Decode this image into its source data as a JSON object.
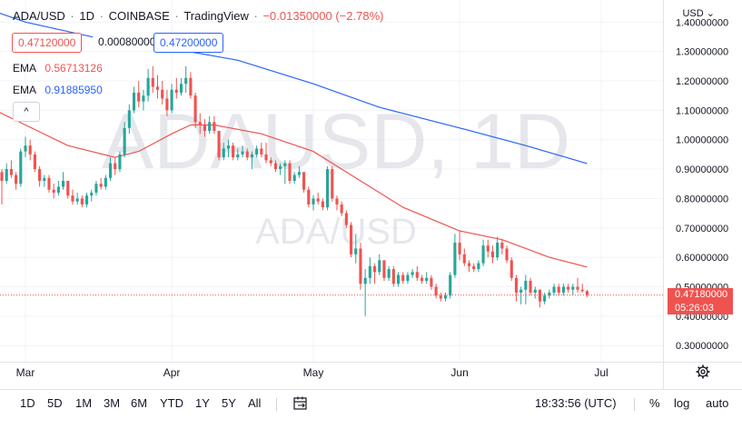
{
  "header": {
    "symbol": "ADA/USD",
    "interval": "1D",
    "exchange": "COINBASE",
    "source": "TradingView",
    "change": "−0.01350000 (−2.78%)",
    "bid": "0.47120000",
    "spread": "0.00080000",
    "ask": "0.47200000"
  },
  "indicators": [
    {
      "label": "EMA",
      "value": "0.56713126",
      "color": "#ef5350"
    },
    {
      "label": "EMA",
      "value": "0.91885950",
      "color": "#2962ff"
    }
  ],
  "collapse_glyph": "^",
  "currency": "USD",
  "currency_glyph": "⌄",
  "watermark": {
    "main": "ADAUSD, 1D",
    "sub": "ADA/USD"
  },
  "price_tag": {
    "price": "0.47180000",
    "countdown": "05:26:03"
  },
  "toolbar": {
    "intervals": [
      "1D",
      "5D",
      "1M",
      "3M",
      "6M",
      "YTD",
      "1Y",
      "5Y",
      "All"
    ],
    "compare_icon": "calendar-range-icon",
    "time": "18:33:56 (UTC)",
    "percent": "%",
    "log": "log",
    "auto": "auto"
  },
  "settings_icon": "gear-icon",
  "chart_data": {
    "type": "candlestick",
    "y_tick_labels": [
      "0.30000000",
      "0.40000000",
      "0.50000000",
      "0.60000000",
      "0.70000000",
      "0.80000000",
      "0.90000000",
      "1.00000000",
      "1.10000000",
      "1.20000000",
      "1.30000000",
      "1.40000000"
    ],
    "y_ticks": [
      0.3,
      0.4,
      0.5,
      0.6,
      0.7,
      0.8,
      0.9,
      1.0,
      1.1,
      1.2,
      1.3,
      1.4
    ],
    "ylim": [
      0.245,
      1.475
    ],
    "x_tick_labels": [
      "Mar",
      "Apr",
      "May",
      "Jun",
      "Jul"
    ],
    "x_ticks": [
      "2022-03-01",
      "2022-04-01",
      "2022-05-01",
      "2022-06-01",
      "2022-07-01"
    ],
    "last_price": 0.4718,
    "candles": [
      {
        "date": "2022-02-20",
        "o": 0.95,
        "h": 0.96,
        "l": 0.86,
        "c": 0.87
      },
      {
        "date": "2022-02-21",
        "o": 0.87,
        "h": 0.93,
        "l": 0.84,
        "c": 0.9
      },
      {
        "date": "2022-02-22",
        "o": 0.9,
        "h": 0.94,
        "l": 0.87,
        "c": 0.92
      },
      {
        "date": "2022-02-23",
        "o": 0.92,
        "h": 0.95,
        "l": 0.88,
        "c": 0.89
      },
      {
        "date": "2022-02-24",
        "o": 0.89,
        "h": 0.9,
        "l": 0.78,
        "c": 0.86
      },
      {
        "date": "2022-02-25",
        "o": 0.86,
        "h": 0.92,
        "l": 0.85,
        "c": 0.9
      },
      {
        "date": "2022-02-26",
        "o": 0.9,
        "h": 0.93,
        "l": 0.87,
        "c": 0.88
      },
      {
        "date": "2022-02-27",
        "o": 0.88,
        "h": 0.89,
        "l": 0.83,
        "c": 0.85
      },
      {
        "date": "2022-02-28",
        "o": 0.85,
        "h": 0.97,
        "l": 0.84,
        "c": 0.96
      },
      {
        "date": "2022-03-01",
        "o": 0.96,
        "h": 1.01,
        "l": 0.94,
        "c": 0.98
      },
      {
        "date": "2022-03-02",
        "o": 0.98,
        "h": 1.0,
        "l": 0.93,
        "c": 0.95
      },
      {
        "date": "2022-03-03",
        "o": 0.95,
        "h": 0.96,
        "l": 0.89,
        "c": 0.9
      },
      {
        "date": "2022-03-04",
        "o": 0.9,
        "h": 0.91,
        "l": 0.84,
        "c": 0.86
      },
      {
        "date": "2022-03-05",
        "o": 0.86,
        "h": 0.88,
        "l": 0.84,
        "c": 0.87
      },
      {
        "date": "2022-03-06",
        "o": 0.87,
        "h": 0.88,
        "l": 0.82,
        "c": 0.83
      },
      {
        "date": "2022-03-07",
        "o": 0.83,
        "h": 0.85,
        "l": 0.8,
        "c": 0.82
      },
      {
        "date": "2022-03-08",
        "o": 0.82,
        "h": 0.86,
        "l": 0.81,
        "c": 0.84
      },
      {
        "date": "2022-03-09",
        "o": 0.84,
        "h": 0.89,
        "l": 0.83,
        "c": 0.86
      },
      {
        "date": "2022-03-10",
        "o": 0.86,
        "h": 0.86,
        "l": 0.8,
        "c": 0.81
      },
      {
        "date": "2022-03-11",
        "o": 0.81,
        "h": 0.83,
        "l": 0.78,
        "c": 0.79
      },
      {
        "date": "2022-03-12",
        "o": 0.79,
        "h": 0.82,
        "l": 0.78,
        "c": 0.8
      },
      {
        "date": "2022-03-13",
        "o": 0.8,
        "h": 0.81,
        "l": 0.77,
        "c": 0.78
      },
      {
        "date": "2022-03-14",
        "o": 0.78,
        "h": 0.82,
        "l": 0.77,
        "c": 0.81
      },
      {
        "date": "2022-03-15",
        "o": 0.81,
        "h": 0.83,
        "l": 0.79,
        "c": 0.82
      },
      {
        "date": "2022-03-16",
        "o": 0.82,
        "h": 0.86,
        "l": 0.81,
        "c": 0.85
      },
      {
        "date": "2022-03-17",
        "o": 0.85,
        "h": 0.87,
        "l": 0.83,
        "c": 0.84
      },
      {
        "date": "2022-03-18",
        "o": 0.84,
        "h": 0.88,
        "l": 0.83,
        "c": 0.87
      },
      {
        "date": "2022-03-19",
        "o": 0.87,
        "h": 0.94,
        "l": 0.86,
        "c": 0.92
      },
      {
        "date": "2022-03-20",
        "o": 0.92,
        "h": 0.94,
        "l": 0.88,
        "c": 0.9
      },
      {
        "date": "2022-03-21",
        "o": 0.9,
        "h": 0.96,
        "l": 0.89,
        "c": 0.95
      },
      {
        "date": "2022-03-22",
        "o": 0.95,
        "h": 1.06,
        "l": 0.94,
        "c": 1.04
      },
      {
        "date": "2022-03-23",
        "o": 1.04,
        "h": 1.12,
        "l": 1.02,
        "c": 1.1
      },
      {
        "date": "2022-03-24",
        "o": 1.1,
        "h": 1.18,
        "l": 1.09,
        "c": 1.16
      },
      {
        "date": "2022-03-25",
        "o": 1.16,
        "h": 1.2,
        "l": 1.11,
        "c": 1.13
      },
      {
        "date": "2022-03-26",
        "o": 1.13,
        "h": 1.17,
        "l": 1.1,
        "c": 1.15
      },
      {
        "date": "2022-03-27",
        "o": 1.15,
        "h": 1.24,
        "l": 1.13,
        "c": 1.21
      },
      {
        "date": "2022-03-28",
        "o": 1.21,
        "h": 1.25,
        "l": 1.16,
        "c": 1.18
      },
      {
        "date": "2022-03-29",
        "o": 1.18,
        "h": 1.22,
        "l": 1.14,
        "c": 1.17
      },
      {
        "date": "2022-03-30",
        "o": 1.17,
        "h": 1.2,
        "l": 1.12,
        "c": 1.14
      },
      {
        "date": "2022-03-31",
        "o": 1.14,
        "h": 1.17,
        "l": 1.08,
        "c": 1.1
      },
      {
        "date": "2022-04-01",
        "o": 1.1,
        "h": 1.19,
        "l": 1.09,
        "c": 1.17
      },
      {
        "date": "2022-04-02",
        "o": 1.17,
        "h": 1.21,
        "l": 1.14,
        "c": 1.16
      },
      {
        "date": "2022-04-03",
        "o": 1.16,
        "h": 1.21,
        "l": 1.15,
        "c": 1.19
      },
      {
        "date": "2022-04-04",
        "o": 1.19,
        "h": 1.25,
        "l": 1.16,
        "c": 1.21
      },
      {
        "date": "2022-04-05",
        "o": 1.21,
        "h": 1.23,
        "l": 1.14,
        "c": 1.15
      },
      {
        "date": "2022-04-06",
        "o": 1.15,
        "h": 1.16,
        "l": 1.04,
        "c": 1.06
      },
      {
        "date": "2022-04-07",
        "o": 1.06,
        "h": 1.09,
        "l": 1.02,
        "c": 1.05
      },
      {
        "date": "2022-04-08",
        "o": 1.05,
        "h": 1.07,
        "l": 1.01,
        "c": 1.03
      },
      {
        "date": "2022-04-09",
        "o": 1.03,
        "h": 1.08,
        "l": 1.02,
        "c": 1.06
      },
      {
        "date": "2022-04-10",
        "o": 1.06,
        "h": 1.08,
        "l": 1.02,
        "c": 1.03
      },
      {
        "date": "2022-04-11",
        "o": 1.03,
        "h": 1.03,
        "l": 0.93,
        "c": 0.94
      },
      {
        "date": "2022-04-12",
        "o": 0.94,
        "h": 0.99,
        "l": 0.93,
        "c": 0.97
      },
      {
        "date": "2022-04-13",
        "o": 0.97,
        "h": 1.0,
        "l": 0.94,
        "c": 0.98
      },
      {
        "date": "2022-04-14",
        "o": 0.98,
        "h": 0.99,
        "l": 0.93,
        "c": 0.94
      },
      {
        "date": "2022-04-15",
        "o": 0.94,
        "h": 0.97,
        "l": 0.93,
        "c": 0.95
      },
      {
        "date": "2022-04-16",
        "o": 0.95,
        "h": 0.98,
        "l": 0.94,
        "c": 0.96
      },
      {
        "date": "2022-04-17",
        "o": 0.96,
        "h": 0.97,
        "l": 0.93,
        "c": 0.94
      },
      {
        "date": "2022-04-18",
        "o": 0.94,
        "h": 0.96,
        "l": 0.9,
        "c": 0.95
      },
      {
        "date": "2022-04-19",
        "o": 0.95,
        "h": 0.98,
        "l": 0.94,
        "c": 0.97
      },
      {
        "date": "2022-04-20",
        "o": 0.97,
        "h": 0.99,
        "l": 0.94,
        "c": 0.95
      },
      {
        "date": "2022-04-21",
        "o": 0.95,
        "h": 0.99,
        "l": 0.92,
        "c": 0.93
      },
      {
        "date": "2022-04-22",
        "o": 0.93,
        "h": 0.94,
        "l": 0.91,
        "c": 0.92
      },
      {
        "date": "2022-04-23",
        "o": 0.92,
        "h": 0.93,
        "l": 0.89,
        "c": 0.9
      },
      {
        "date": "2022-04-24",
        "o": 0.9,
        "h": 0.92,
        "l": 0.88,
        "c": 0.91
      },
      {
        "date": "2022-04-25",
        "o": 0.91,
        "h": 0.93,
        "l": 0.85,
        "c": 0.92
      },
      {
        "date": "2022-04-26",
        "o": 0.92,
        "h": 0.93,
        "l": 0.85,
        "c": 0.86
      },
      {
        "date": "2022-04-27",
        "o": 0.86,
        "h": 0.89,
        "l": 0.85,
        "c": 0.88
      },
      {
        "date": "2022-04-28",
        "o": 0.88,
        "h": 0.91,
        "l": 0.87,
        "c": 0.89
      },
      {
        "date": "2022-04-29",
        "o": 0.89,
        "h": 0.89,
        "l": 0.82,
        "c": 0.83
      },
      {
        "date": "2022-04-30",
        "o": 0.83,
        "h": 0.84,
        "l": 0.77,
        "c": 0.78
      },
      {
        "date": "2022-05-01",
        "o": 0.78,
        "h": 0.81,
        "l": 0.76,
        "c": 0.8
      },
      {
        "date": "2022-05-02",
        "o": 0.8,
        "h": 0.82,
        "l": 0.78,
        "c": 0.79
      },
      {
        "date": "2022-05-03",
        "o": 0.79,
        "h": 0.8,
        "l": 0.76,
        "c": 0.77
      },
      {
        "date": "2022-05-04",
        "o": 0.77,
        "h": 0.91,
        "l": 0.76,
        "c": 0.9
      },
      {
        "date": "2022-05-05",
        "o": 0.9,
        "h": 0.91,
        "l": 0.79,
        "c": 0.8
      },
      {
        "date": "2022-05-06",
        "o": 0.8,
        "h": 0.81,
        "l": 0.76,
        "c": 0.78
      },
      {
        "date": "2022-05-07",
        "o": 0.78,
        "h": 0.79,
        "l": 0.74,
        "c": 0.75
      },
      {
        "date": "2022-05-08",
        "o": 0.75,
        "h": 0.76,
        "l": 0.7,
        "c": 0.71
      },
      {
        "date": "2022-05-09",
        "o": 0.71,
        "h": 0.72,
        "l": 0.6,
        "c": 0.61
      },
      {
        "date": "2022-05-10",
        "o": 0.61,
        "h": 0.68,
        "l": 0.58,
        "c": 0.63
      },
      {
        "date": "2022-05-11",
        "o": 0.63,
        "h": 0.65,
        "l": 0.49,
        "c": 0.51
      },
      {
        "date": "2022-05-12",
        "o": 0.51,
        "h": 0.56,
        "l": 0.4,
        "c": 0.53
      },
      {
        "date": "2022-05-13",
        "o": 0.53,
        "h": 0.6,
        "l": 0.51,
        "c": 0.57
      },
      {
        "date": "2022-05-14",
        "o": 0.57,
        "h": 0.58,
        "l": 0.51,
        "c": 0.55
      },
      {
        "date": "2022-05-15",
        "o": 0.55,
        "h": 0.61,
        "l": 0.54,
        "c": 0.59
      },
      {
        "date": "2022-05-16",
        "o": 0.59,
        "h": 0.59,
        "l": 0.52,
        "c": 0.53
      },
      {
        "date": "2022-05-17",
        "o": 0.53,
        "h": 0.57,
        "l": 0.52,
        "c": 0.56
      },
      {
        "date": "2022-05-18",
        "o": 0.56,
        "h": 0.57,
        "l": 0.5,
        "c": 0.51
      },
      {
        "date": "2022-05-19",
        "o": 0.51,
        "h": 0.55,
        "l": 0.5,
        "c": 0.54
      },
      {
        "date": "2022-05-20",
        "o": 0.54,
        "h": 0.55,
        "l": 0.51,
        "c": 0.52
      },
      {
        "date": "2022-05-21",
        "o": 0.52,
        "h": 0.55,
        "l": 0.51,
        "c": 0.54
      },
      {
        "date": "2022-05-22",
        "o": 0.54,
        "h": 0.56,
        "l": 0.53,
        "c": 0.55
      },
      {
        "date": "2022-05-23",
        "o": 0.55,
        "h": 0.57,
        "l": 0.52,
        "c": 0.53
      },
      {
        "date": "2022-05-24",
        "o": 0.53,
        "h": 0.54,
        "l": 0.51,
        "c": 0.52
      },
      {
        "date": "2022-05-25",
        "o": 0.52,
        "h": 0.55,
        "l": 0.51,
        "c": 0.53
      },
      {
        "date": "2022-05-26",
        "o": 0.53,
        "h": 0.54,
        "l": 0.49,
        "c": 0.5
      },
      {
        "date": "2022-05-27",
        "o": 0.5,
        "h": 0.51,
        "l": 0.46,
        "c": 0.47
      },
      {
        "date": "2022-05-28",
        "o": 0.47,
        "h": 0.48,
        "l": 0.45,
        "c": 0.46
      },
      {
        "date": "2022-05-29",
        "o": 0.46,
        "h": 0.48,
        "l": 0.45,
        "c": 0.47
      },
      {
        "date": "2022-05-30",
        "o": 0.47,
        "h": 0.55,
        "l": 0.46,
        "c": 0.54
      },
      {
        "date": "2022-05-31",
        "o": 0.54,
        "h": 0.68,
        "l": 0.53,
        "c": 0.65
      },
      {
        "date": "2022-06-01",
        "o": 0.65,
        "h": 0.69,
        "l": 0.59,
        "c": 0.61
      },
      {
        "date": "2022-06-02",
        "o": 0.61,
        "h": 0.63,
        "l": 0.57,
        "c": 0.58
      },
      {
        "date": "2022-06-03",
        "o": 0.58,
        "h": 0.59,
        "l": 0.55,
        "c": 0.57
      },
      {
        "date": "2022-06-04",
        "o": 0.57,
        "h": 0.58,
        "l": 0.55,
        "c": 0.56
      },
      {
        "date": "2022-06-05",
        "o": 0.56,
        "h": 0.59,
        "l": 0.55,
        "c": 0.58
      },
      {
        "date": "2022-06-06",
        "o": 0.58,
        "h": 0.66,
        "l": 0.57,
        "c": 0.64
      },
      {
        "date": "2022-06-07",
        "o": 0.64,
        "h": 0.66,
        "l": 0.6,
        "c": 0.62
      },
      {
        "date": "2022-06-08",
        "o": 0.62,
        "h": 0.64,
        "l": 0.58,
        "c": 0.6
      },
      {
        "date": "2022-06-09",
        "o": 0.6,
        "h": 0.67,
        "l": 0.59,
        "c": 0.65
      },
      {
        "date": "2022-06-10",
        "o": 0.65,
        "h": 0.66,
        "l": 0.61,
        "c": 0.63
      },
      {
        "date": "2022-06-11",
        "o": 0.63,
        "h": 0.64,
        "l": 0.58,
        "c": 0.59
      },
      {
        "date": "2022-06-12",
        "o": 0.59,
        "h": 0.6,
        "l": 0.52,
        "c": 0.53
      },
      {
        "date": "2022-06-13",
        "o": 0.53,
        "h": 0.54,
        "l": 0.45,
        "c": 0.48
      },
      {
        "date": "2022-06-14",
        "o": 0.48,
        "h": 0.5,
        "l": 0.44,
        "c": 0.49
      },
      {
        "date": "2022-06-15",
        "o": 0.49,
        "h": 0.54,
        "l": 0.44,
        "c": 0.52
      },
      {
        "date": "2022-06-16",
        "o": 0.52,
        "h": 0.53,
        "l": 0.47,
        "c": 0.48
      },
      {
        "date": "2022-06-17",
        "o": 0.48,
        "h": 0.5,
        "l": 0.46,
        "c": 0.49
      },
      {
        "date": "2022-06-18",
        "o": 0.49,
        "h": 0.49,
        "l": 0.43,
        "c": 0.45
      },
      {
        "date": "2022-06-19",
        "o": 0.45,
        "h": 0.48,
        "l": 0.44,
        "c": 0.47
      },
      {
        "date": "2022-06-20",
        "o": 0.47,
        "h": 0.49,
        "l": 0.46,
        "c": 0.48
      },
      {
        "date": "2022-06-21",
        "o": 0.48,
        "h": 0.51,
        "l": 0.47,
        "c": 0.5
      },
      {
        "date": "2022-06-22",
        "o": 0.5,
        "h": 0.51,
        "l": 0.47,
        "c": 0.48
      },
      {
        "date": "2022-06-23",
        "o": 0.48,
        "h": 0.51,
        "l": 0.47,
        "c": 0.5
      },
      {
        "date": "2022-06-24",
        "o": 0.5,
        "h": 0.51,
        "l": 0.48,
        "c": 0.49
      },
      {
        "date": "2022-06-25",
        "o": 0.49,
        "h": 0.51,
        "l": 0.47,
        "c": 0.5
      },
      {
        "date": "2022-06-26",
        "o": 0.5,
        "h": 0.53,
        "l": 0.48,
        "c": 0.49
      },
      {
        "date": "2022-06-27",
        "o": 0.49,
        "h": 0.51,
        "l": 0.48,
        "c": 0.485
      },
      {
        "date": "2022-06-28",
        "o": 0.485,
        "h": 0.49,
        "l": 0.465,
        "c": 0.4718
      }
    ],
    "ema_short": [
      {
        "date": "2022-02-20",
        "v": 1.12
      },
      {
        "date": "2022-03-01",
        "v": 1.05
      },
      {
        "date": "2022-03-10",
        "v": 0.98
      },
      {
        "date": "2022-03-20",
        "v": 0.94
      },
      {
        "date": "2022-03-25",
        "v": 0.96
      },
      {
        "date": "2022-04-01",
        "v": 1.02
      },
      {
        "date": "2022-04-05",
        "v": 1.05
      },
      {
        "date": "2022-04-10",
        "v": 1.05
      },
      {
        "date": "2022-04-20",
        "v": 1.02
      },
      {
        "date": "2022-05-01",
        "v": 0.96
      },
      {
        "date": "2022-05-10",
        "v": 0.87
      },
      {
        "date": "2022-05-20",
        "v": 0.77
      },
      {
        "date": "2022-06-01",
        "v": 0.69
      },
      {
        "date": "2022-06-10",
        "v": 0.66
      },
      {
        "date": "2022-06-20",
        "v": 0.6
      },
      {
        "date": "2022-06-28",
        "v": 0.567
      }
    ],
    "ema_long": [
      {
        "date": "2022-02-20",
        "v": 1.45
      },
      {
        "date": "2022-03-01",
        "v": 1.4
      },
      {
        "date": "2022-03-15",
        "v": 1.35
      },
      {
        "date": "2022-04-01",
        "v": 1.31
      },
      {
        "date": "2022-04-15",
        "v": 1.27
      },
      {
        "date": "2022-05-01",
        "v": 1.19
      },
      {
        "date": "2022-05-15",
        "v": 1.11
      },
      {
        "date": "2022-06-01",
        "v": 1.04
      },
      {
        "date": "2022-06-15",
        "v": 0.98
      },
      {
        "date": "2022-06-28",
        "v": 0.919
      }
    ],
    "grid": true,
    "up_color": "#26a69a",
    "down_color": "#ef5350"
  }
}
